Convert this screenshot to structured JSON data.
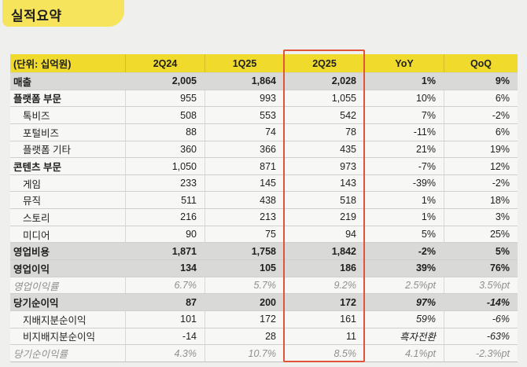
{
  "page": {
    "title": "실적요약"
  },
  "colors": {
    "page_bg": "#efefed",
    "title_bg": "#f6e45c",
    "header_bg": "#f0db2c",
    "row_bg": "#f7f7f5",
    "key_row_bg": "#d9d9d7",
    "highlight_border": "#e0543c",
    "muted_text": "#8f8f8d"
  },
  "table": {
    "unit_label": "(단위: 십억원)",
    "columns": [
      "2Q24",
      "1Q25",
      "2Q25",
      "YoY",
      "QoQ"
    ],
    "highlighted_column": "2Q25",
    "rows": [
      {
        "label": "매출",
        "style": "key",
        "values": [
          "2,005",
          "1,864",
          "2,028",
          "1%",
          "9%"
        ]
      },
      {
        "label": "플랫폼 부문",
        "style": "section",
        "values": [
          "955",
          "993",
          "1,055",
          "10%",
          "6%"
        ]
      },
      {
        "label": "톡비즈",
        "style": "sub",
        "values": [
          "508",
          "553",
          "542",
          "7%",
          "-2%"
        ]
      },
      {
        "label": "포털비즈",
        "style": "sub",
        "values": [
          "88",
          "74",
          "78",
          "-11%",
          "6%"
        ]
      },
      {
        "label": "플랫폼 기타",
        "style": "sub",
        "values": [
          "360",
          "366",
          "435",
          "21%",
          "19%"
        ]
      },
      {
        "label": "콘텐츠 부문",
        "style": "section",
        "values": [
          "1,050",
          "871",
          "973",
          "-7%",
          "12%"
        ]
      },
      {
        "label": "게임",
        "style": "sub",
        "values": [
          "233",
          "145",
          "143",
          "-39%",
          "-2%"
        ]
      },
      {
        "label": "뮤직",
        "style": "sub",
        "values": [
          "511",
          "438",
          "518",
          "1%",
          "18%"
        ]
      },
      {
        "label": "스토리",
        "style": "sub",
        "values": [
          "216",
          "213",
          "219",
          "1%",
          "3%"
        ]
      },
      {
        "label": "미디어",
        "style": "sub",
        "values": [
          "90",
          "75",
          "94",
          "5%",
          "25%"
        ]
      },
      {
        "label": "영업비용",
        "style": "key",
        "values": [
          "1,871",
          "1,758",
          "1,842",
          "-2%",
          "5%"
        ]
      },
      {
        "label": "영업이익",
        "style": "key",
        "values": [
          "134",
          "105",
          "186",
          "39%",
          "76%"
        ]
      },
      {
        "label": "영업이익률",
        "style": "ratio",
        "values": [
          "6.7%",
          "5.7%",
          "9.2%",
          "2.5%pt",
          "3.5%pt"
        ]
      },
      {
        "label": "당기순이익",
        "style": "key",
        "italic_change": true,
        "values": [
          "87",
          "200",
          "172",
          "97%",
          "-14%"
        ]
      },
      {
        "label": "지배지분순이익",
        "style": "sub",
        "italic_change": true,
        "values": [
          "101",
          "172",
          "161",
          "59%",
          "-6%"
        ]
      },
      {
        "label": "비지배지분순이익",
        "style": "sub",
        "italic_change": true,
        "values": [
          "-14",
          "28",
          "11",
          "흑자전환",
          "-63%"
        ]
      },
      {
        "label": "당기순이익률",
        "style": "ratio",
        "values": [
          "4.3%",
          "10.7%",
          "8.5%",
          "4.1%pt",
          "-2.3%pt"
        ]
      }
    ]
  }
}
